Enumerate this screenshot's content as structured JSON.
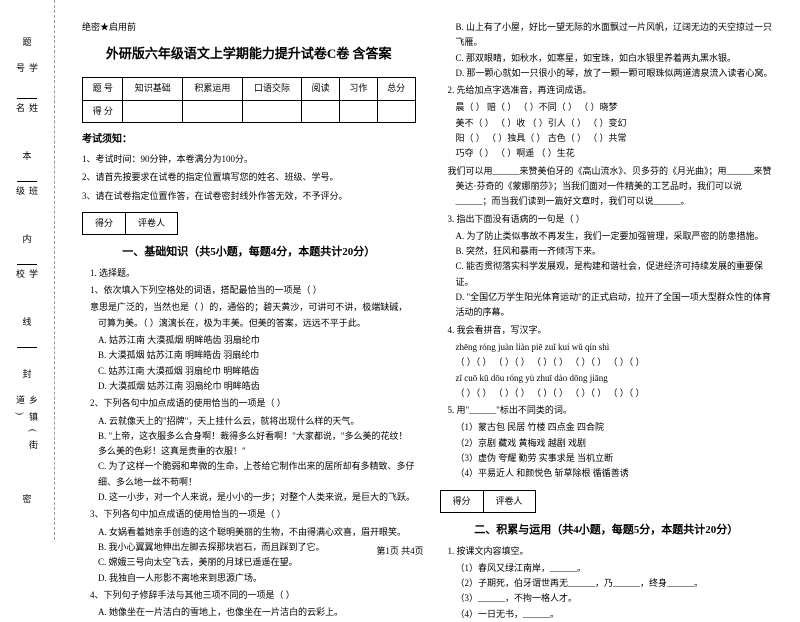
{
  "secret": "绝密★启用前",
  "title": "外研版六年级语文上学期能力提升试卷C卷 含答案",
  "score_headers": [
    "题 号",
    "知识基础",
    "积累运用",
    "口语交际",
    "阅读",
    "习作",
    "总分"
  ],
  "score_row_label": "得 分",
  "notice_title": "考试须知：",
  "notices": [
    "1、考试时间：90分钟，本卷满分为100分。",
    "2、请首先按要求在试卷的指定位置填写您的姓名、班级、学号。",
    "3、请在试卷指定位置作答，在试卷密封线外作答无效，不予评分。"
  ],
  "scorebox": [
    "得分",
    "评卷人"
  ],
  "part1_title": "一、基础知识（共5小题，每题4分，本题共计20分）",
  "part2_title": "二、积累与运用（共4小题，每题5分，本题共计20分）",
  "sidebar": {
    "school": "学校",
    "class": "班级",
    "name": "姓名",
    "id": "学号",
    "township": "乡镇(街道)"
  },
  "side_chars": [
    "题",
    "本",
    "内",
    "线",
    "封",
    "密"
  ],
  "q1": {
    "stem": "1. 选择题。",
    "sub1": "1、依次填入下列空格处的词语，搭配最恰当的一项是（    ）",
    "sub1_text": "意思是广泛的，当然也是（    ）的，通俗的；碧天黄沙，可讲可不讲，极端缺碱，可算为美。（    ）漓漓长在，极为丰美。但美的答案，远远不平于此。",
    "opts1": [
      "A. 姑苏江南    大漠孤烟    明眸皓齿    羽扇纶巾",
      "B. 大漠孤烟    姑苏江南    明眸皓齿    羽扇纶巾",
      "C. 姑苏江南    大漠孤烟    羽扇纶巾    明眸皓齿",
      "D. 大漠孤烟    姑苏江南    羽扇纶巾    明眸皓齿"
    ],
    "sub2": "2、下列各句中加点成语的使用恰当的一项是（    ）",
    "opts2": [
      "A. 云就像天上的\"招牌\"，天上挂什么云，就将出现什么样的天气。",
      "B. \"上帝，这衣服多么合身啊！裁得多么好看啊！\"大家都说，\"多么美的花纹！多么美的色彩！这真是贵重的衣服！\"",
      "C. 为了这样一个脆弱和卑微的生命，上苍给它制作出来的居所却有多精致、多仔细、多么地一丝不苟啊！",
      "D. 这一小步，对一个人来说，是小小的一步；对整个人类来说，是巨大的飞跃。"
    ],
    "sub3": "3、下列各句中加点成语的使用恰当的一项是（    ）",
    "opts3": [
      "A. 女娲看着她亲手创造的这个聪明美丽的生物，不由得满心欢喜，眉开眼笑。",
      "B. 我小心翼翼地伸出左脚去探那块岩石，而且踩到了它。",
      "C. 嫦娥三号向太空飞去，美丽的月球已遥遥在望。",
      "D. 我独自一人形影不离地来到思源广场。"
    ],
    "sub4": "4、下列句子修辞手法与其他三项不同的一项是（    ）",
    "opts4_a": "A. 她像坐在一片洁白的雪地上，也像坐在一片洁白的云彩上。"
  },
  "col2_opts": [
    "B. 山上有了小屋，好比一望无际的水面飘过一片风帆，辽阔无边的天空掠过一只飞雁。",
    "C. 那双眼睛，如秋水，如寒星，如宝珠，如白水银里养着两丸黑水银。",
    "D. 那一颗心就如一只很小的琴，放了一颗一颗可眼珠似两道清泉流入读者心窝。"
  ],
  "q2": {
    "stem": "2. 先给加点字选准音，再连词成语。",
    "rows": [
      "晨（    ）    赔（    ）    （    ）不同（    ）    （    ）晓梦",
      "美不（    ）    （    ）收    （    ）引人（    ）    （    ）变幻",
      "阳（    ）    （    ）独具（    ）    古色（    ）    （    ）共常",
      "巧夺（    ）    （    ）啊遥    （    ）生花"
    ],
    "text1": "我们可以用______来赞美伯牙的《高山流水》、贝多芬的《月光曲》；用______来赞美达·芬奇的《蒙娜丽莎》；当我们面对一件精美的工艺品时，我们可以说______；而当我们读到一篇好文章时，我们可以说______。"
  },
  "q3": {
    "stem": "3. 指出下面没有语病的一句是（    ）",
    "opts": [
      "A. 为了防止类似事故不再发生，我们一定要加强管理，采取严密的防患措施。",
      "B. 突然，狂风和暴雨一齐倾泻下来。",
      "C. 能否贯彻落实科学发展观，是构建和谐社会，促进经济可持续发展的重要保证。",
      "D. \"全国亿万学生阳光体育运动\"的正式启动，拉开了全国一项大型群众性的体育活动的序幕。"
    ]
  },
  "q4": {
    "stem": "4. 我会看拼音，写汉字。",
    "pinyin1": "zhēng róng        juàn liàn        piē zuǐ        kuí wǔ        qín shì",
    "boxes1": "（    ）（    ）  （    ）（    ）  （    ）（    ）  （    ）（    ）  （    ）（    ）",
    "pinyin2": "  zǐ   cuō          kū dōu         róng yù       zhuī dào      dōng jiāng",
    "boxes2": "（    ）（    ）  （    ）（    ）  （    ）（    ）  （    ）（    ）  （    ）（    ）"
  },
  "q5": {
    "stem": "5. 用\"______\"标出不同类的词。",
    "rows": [
      "（1）蒙古包    民居    竹楼    四点金    四合院",
      "（2）京剧    藏戏    黄梅戏    越剧    戏剧",
      "（3）虚伪    夸耀    勤劳    实事求是    当机立断",
      "（4）平易近人    和颜悦色    斩草除根    循循善诱"
    ]
  },
  "q_part2_1": {
    "stem": "1. 按课文内容填空。",
    "rows": [
      "（1）春风又绿江南岸，______。",
      "（2）子期死，伯牙谓世再无______，乃______，终身______。",
      "（3）______，不拘一格人才。",
      "（4）一日无书，______。"
    ]
  },
  "footer": "第1页 共4页"
}
